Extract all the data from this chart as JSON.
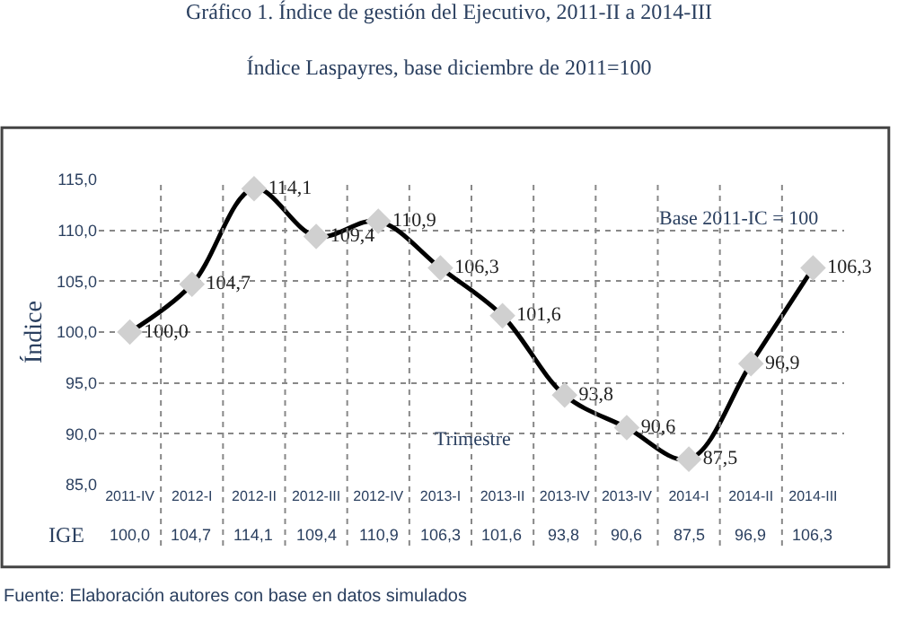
{
  "chart_data": {
    "type": "line",
    "title": "Gráfico 1. Índice de gestión del Ejecutivo, 2011-II a 2014-III",
    "subtitle": "Índice Laspayres, base diciembre de 2011=100",
    "xlabel": "Trimestre",
    "ylabel": "Índice",
    "categories": [
      "2011-IV",
      "2012-I",
      "2012-II",
      "2012-III",
      "2012-IV",
      "2013-I",
      "2013-II",
      "2013-IV",
      "2013-IV",
      "2014-I",
      "2014-II",
      "2014-III"
    ],
    "series": [
      {
        "name": "IGE",
        "color": "#000000",
        "values": [
          100.0,
          104.7,
          114.1,
          109.4,
          110.9,
          106.3,
          101.6,
          93.8,
          90.6,
          87.5,
          96.9,
          106.3
        ],
        "value_labels": [
          "100,0",
          "104,7",
          "114,1",
          "109,4",
          "110,9",
          "106,3",
          "101,6",
          "93,8",
          "90,6",
          "87,5",
          "96,9",
          "106,3"
        ]
      }
    ],
    "marker": "diamond",
    "line_style": "solid",
    "grid": true,
    "legend": false,
    "ylim": [
      85,
      115
    ],
    "yticks": [
      {
        "value": 85,
        "label": "85,0"
      },
      {
        "value": 90,
        "label": "90,0"
      },
      {
        "value": 95,
        "label": "95,0"
      },
      {
        "value": 100,
        "label": "100,0"
      },
      {
        "value": 105,
        "label": "105,0"
      },
      {
        "value": 110,
        "label": "110,0"
      },
      {
        "value": 115,
        "label": "115,0"
      }
    ],
    "annotations": [
      "Base 2011-IC = 100",
      "Fuente: Elaboración autores con base en datos simulados"
    ]
  }
}
